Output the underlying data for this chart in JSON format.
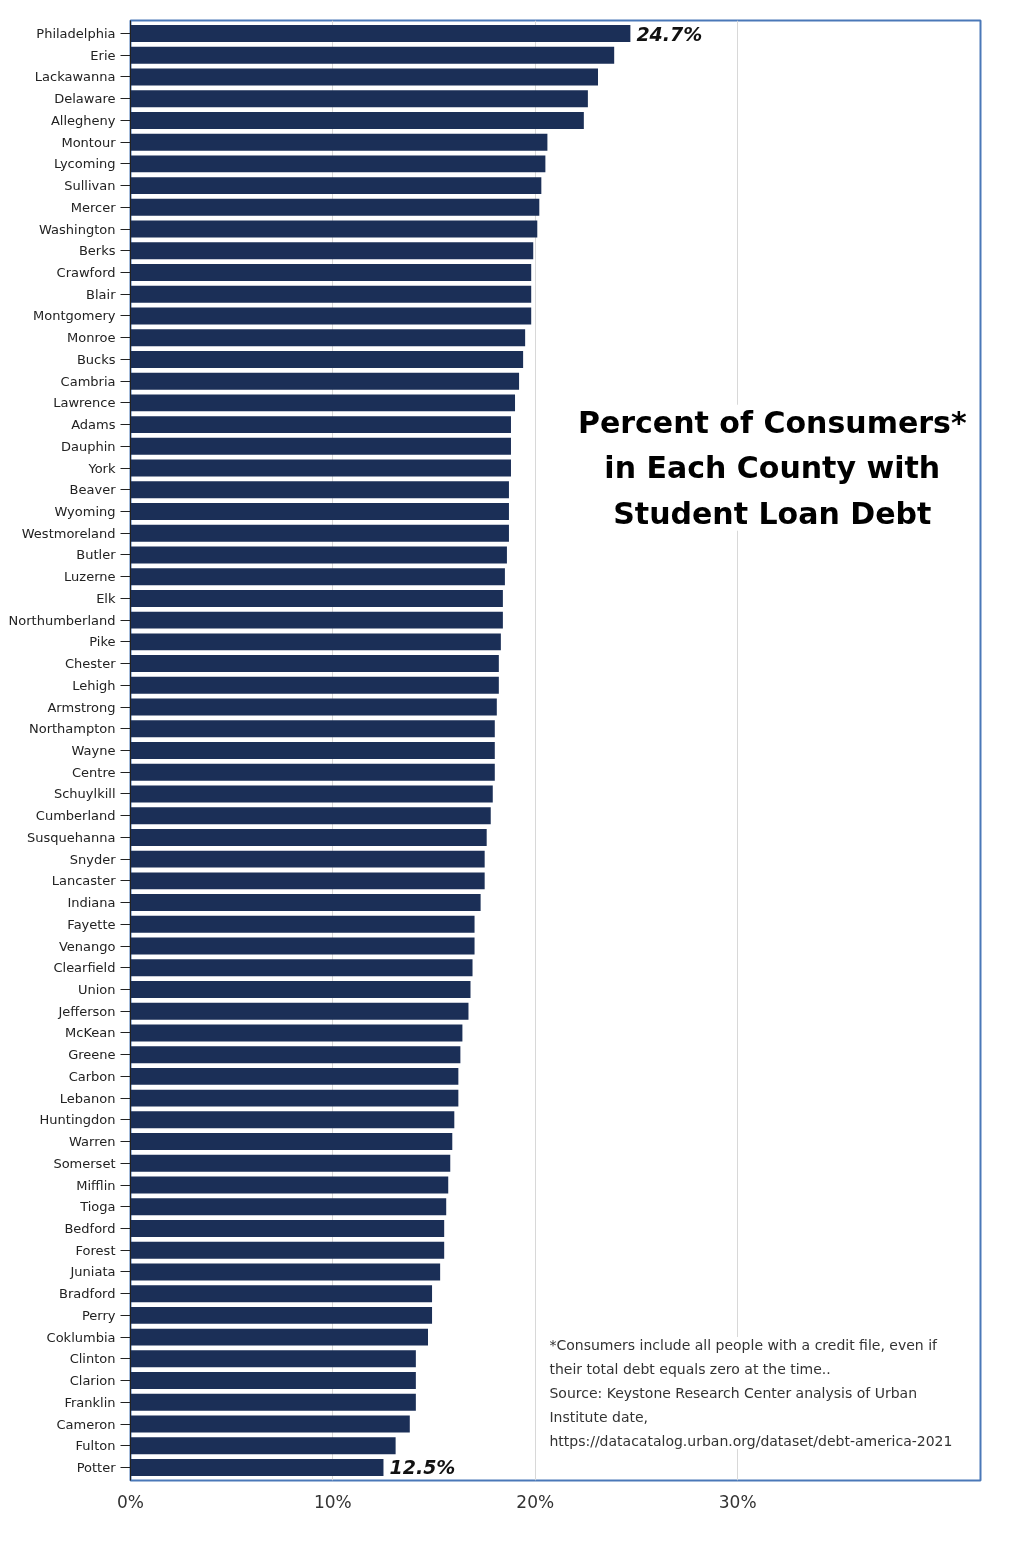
{
  "chart_data": {
    "type": "bar",
    "orientation": "horizontal",
    "title": "Percent of Consumers* in Each County with Student Loan Debt",
    "categories": [
      "Philadelphia",
      "Erie",
      "Lackawanna",
      "Delaware",
      "Allegheny",
      "Montour",
      "Lycoming",
      "Sullivan",
      "Mercer",
      "Washington",
      "Berks",
      "Crawford",
      "Blair",
      "Montgomery",
      "Monroe",
      "Bucks",
      "Cambria",
      "Lawrence",
      "Adams",
      "Dauphin",
      "York",
      "Beaver",
      "Wyoming",
      "Westmoreland",
      "Butler",
      "Luzerne",
      "Elk",
      "Northumberland",
      "Pike",
      "Chester",
      "Lehigh",
      "Armstrong",
      "Northampton",
      "Wayne",
      "Centre",
      "Schuylkill",
      "Cumberland",
      "Susquehanna",
      "Snyder",
      "Lancaster",
      "Indiana",
      "Fayette",
      "Venango",
      "Clearfield",
      "Union",
      "Jefferson",
      "McKean",
      "Greene",
      "Carbon",
      "Lebanon",
      "Huntingdon",
      "Warren",
      "Somerset",
      "Mifflin",
      "Tioga",
      "Bedford",
      "Forest",
      "Juniata",
      "Bradford",
      "Perry",
      "Coklumbia",
      "Clinton",
      "Clarion",
      "Franklin",
      "Cameron",
      "Fulton",
      "Potter"
    ],
    "values": [
      24.7,
      23.9,
      23.1,
      22.6,
      22.4,
      20.6,
      20.5,
      20.3,
      20.2,
      20.1,
      19.9,
      19.8,
      19.8,
      19.8,
      19.5,
      19.4,
      19.2,
      19.0,
      18.8,
      18.8,
      18.8,
      18.7,
      18.7,
      18.7,
      18.6,
      18.5,
      18.4,
      18.4,
      18.3,
      18.2,
      18.2,
      18.1,
      18.0,
      18.0,
      18.0,
      17.9,
      17.8,
      17.6,
      17.5,
      17.5,
      17.3,
      17.0,
      17.0,
      16.9,
      16.8,
      16.7,
      16.4,
      16.3,
      16.2,
      16.2,
      16.0,
      15.9,
      15.8,
      15.7,
      15.6,
      15.5,
      15.5,
      15.3,
      14.9,
      14.9,
      14.7,
      14.1,
      14.1,
      14.1,
      13.8,
      13.1,
      12.5
    ],
    "value_labels": [
      "24.7%",
      null,
      null,
      null,
      null,
      null,
      null,
      null,
      null,
      null,
      null,
      null,
      null,
      null,
      null,
      null,
      null,
      null,
      null,
      null,
      null,
      null,
      null,
      null,
      null,
      null,
      null,
      null,
      null,
      null,
      null,
      null,
      null,
      null,
      null,
      null,
      null,
      null,
      null,
      null,
      null,
      null,
      null,
      null,
      null,
      null,
      null,
      null,
      null,
      null,
      null,
      null,
      null,
      null,
      null,
      null,
      null,
      null,
      null,
      null,
      null,
      null,
      null,
      null,
      null,
      null,
      "12.5%"
    ],
    "color": "#1b2f57",
    "xlim": [
      0,
      42
    ],
    "xticks": [
      {
        "value": 0,
        "label": "0%"
      },
      {
        "value": 10,
        "label": "10%"
      },
      {
        "value": 20,
        "label": "20%"
      },
      {
        "value": 30,
        "label": "30%"
      }
    ],
    "grid": "x",
    "annotations": [
      "*Consumers include all people with a credit file, even if their total debt equals zero at the time..",
      "Source: Keystone Research Center analysis of Urban Institute date, https://datacatalog.urban.org/dataset/debt-america-2021"
    ]
  }
}
